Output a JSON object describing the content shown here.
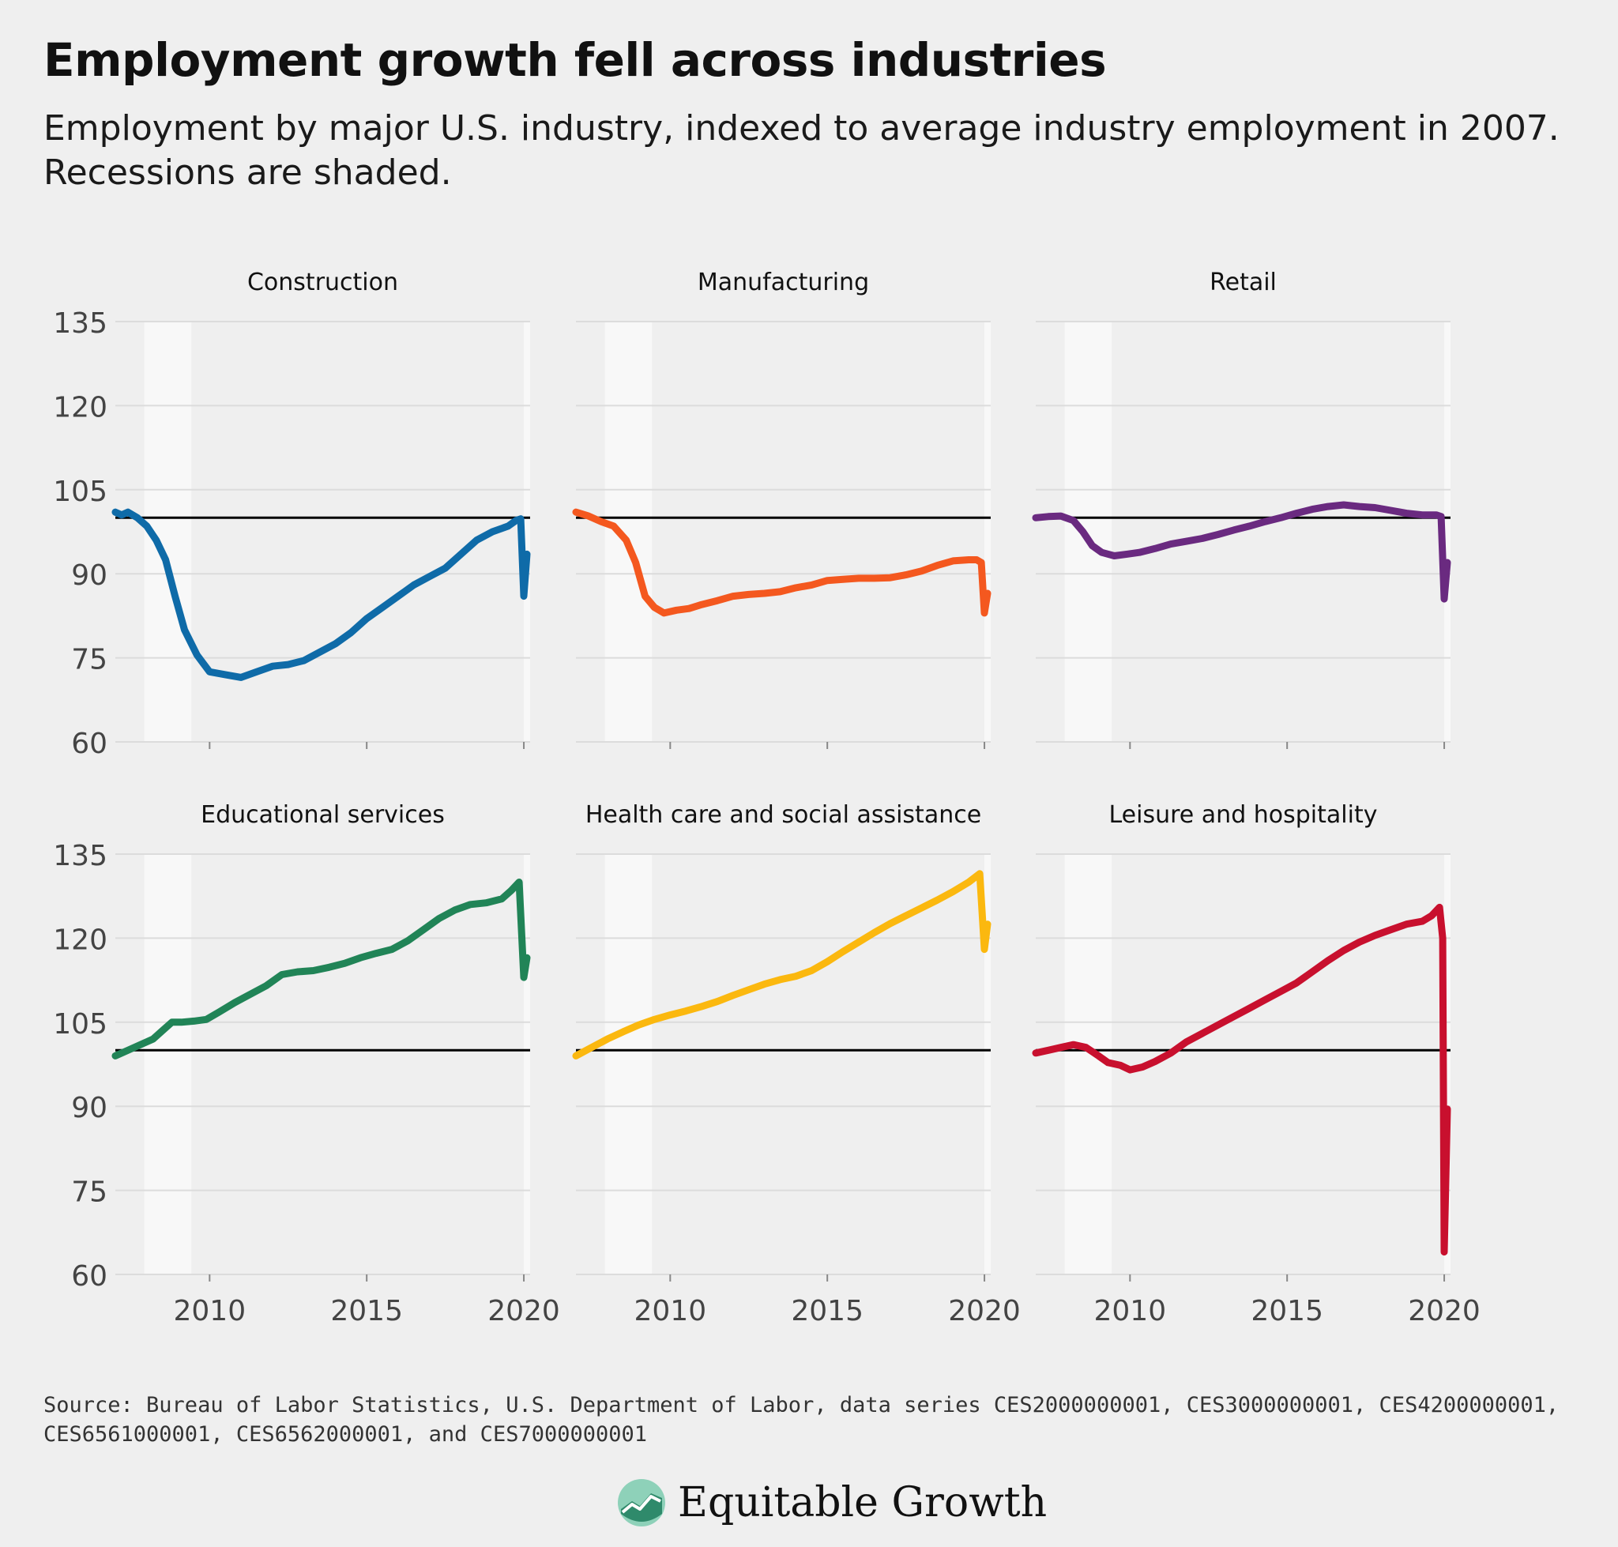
{
  "title": "Employment growth fell across industries",
  "subtitle": "Employment by major U.S. industry, indexed to average industry employment in 2007. Recessions are shaded.",
  "source": "Source: Bureau of Labor Statistics, U.S. Department of Labor, data series CES2000000001, CES3000000001, CES4200000001, CES6561000001, CES6562000001, and CES7000000001",
  "brand": {
    "name": "Equitable Growth",
    "logo_icon": "equitable-growth-logo-icon"
  },
  "colors": {
    "background": "#efefef",
    "recession": "#f8f8f8",
    "grid": "#dcdcdc",
    "reference_line": "#000000"
  },
  "chart_data": [
    {
      "type": "line",
      "title": "Construction",
      "color": "#0f6ba8",
      "xlim": [
        2007,
        2020.2
      ],
      "ylim": [
        60,
        135
      ],
      "yticks": [
        60,
        75,
        90,
        105,
        120,
        135
      ],
      "xticks": [
        2010,
        2015,
        2020
      ],
      "xtick_labels": [
        "2010",
        "2015",
        "2020"
      ],
      "ytick_labels": [
        "60",
        "75",
        "90",
        "105",
        "120",
        "135"
      ],
      "reference": 100,
      "recessions": [
        [
          2007.92,
          2009.42
        ],
        [
          2020.0,
          2020.4
        ]
      ],
      "x": [
        2007.0,
        2007.2,
        2007.4,
        2007.7,
        2008.0,
        2008.3,
        2008.6,
        2008.9,
        2009.2,
        2009.6,
        2010.0,
        2010.5,
        2011.0,
        2011.5,
        2012.0,
        2012.5,
        2013.0,
        2013.5,
        2014.0,
        2014.5,
        2015.0,
        2015.5,
        2016.0,
        2016.5,
        2017.0,
        2017.5,
        2018.0,
        2018.5,
        2019.0,
        2019.5,
        2019.75,
        2019.9,
        2020.0,
        2020.1
      ],
      "values": [
        101.0,
        100.5,
        101.0,
        100.0,
        98.5,
        96.0,
        92.5,
        86.0,
        80.0,
        75.5,
        72.5,
        72.0,
        71.5,
        72.5,
        73.5,
        73.8,
        74.5,
        76.0,
        77.5,
        79.5,
        82.0,
        84.0,
        86.0,
        88.0,
        89.5,
        91.0,
        93.5,
        96.0,
        97.5,
        98.5,
        99.5,
        99.8,
        86.0,
        93.5
      ],
      "series_label": "Construction"
    },
    {
      "type": "line",
      "title": "Manufacturing",
      "color": "#f4581f",
      "xlim": [
        2007,
        2020.2
      ],
      "ylim": [
        60,
        135
      ],
      "yticks": [
        60,
        75,
        90,
        105,
        120,
        135
      ],
      "xticks": [
        2010,
        2015,
        2020
      ],
      "xtick_labels": [
        "2010",
        "2015",
        "2020"
      ],
      "ytick_labels": [
        "60",
        "75",
        "90",
        "105",
        "120",
        "135"
      ],
      "reference": 100,
      "recessions": [
        [
          2007.92,
          2009.42
        ],
        [
          2020.0,
          2020.4
        ]
      ],
      "x": [
        2007.0,
        2007.4,
        2007.8,
        2008.2,
        2008.6,
        2008.9,
        2009.2,
        2009.5,
        2009.8,
        2010.2,
        2010.6,
        2011.0,
        2011.5,
        2012.0,
        2012.5,
        2013.0,
        2013.5,
        2014.0,
        2014.5,
        2015.0,
        2015.5,
        2016.0,
        2016.5,
        2017.0,
        2017.5,
        2018.0,
        2018.5,
        2019.0,
        2019.5,
        2019.75,
        2019.9,
        2020.0,
        2020.1
      ],
      "values": [
        101.0,
        100.3,
        99.3,
        98.5,
        96.0,
        92.0,
        86.0,
        84.0,
        83.0,
        83.5,
        83.8,
        84.5,
        85.2,
        86.0,
        86.3,
        86.5,
        86.8,
        87.5,
        88.0,
        88.8,
        89.0,
        89.2,
        89.2,
        89.3,
        89.8,
        90.5,
        91.5,
        92.3,
        92.5,
        92.5,
        92.0,
        83.0,
        86.5
      ],
      "series_label": "Manufacturing"
    },
    {
      "type": "line",
      "title": "Retail",
      "color": "#6a2a80",
      "xlim": [
        2007,
        2020.2
      ],
      "ylim": [
        60,
        135
      ],
      "yticks": [
        60,
        75,
        90,
        105,
        120,
        135
      ],
      "xticks": [
        2010,
        2015,
        2020
      ],
      "xtick_labels": [
        "2010",
        "2015",
        "2020"
      ],
      "ytick_labels": [
        "60",
        "75",
        "90",
        "105",
        "120",
        "135"
      ],
      "reference": 100,
      "recessions": [
        [
          2007.92,
          2009.42
        ],
        [
          2020.0,
          2020.4
        ]
      ],
      "x": [
        2007.0,
        2007.4,
        2007.8,
        2008.2,
        2008.5,
        2008.8,
        2009.1,
        2009.5,
        2009.9,
        2010.3,
        2010.8,
        2011.3,
        2011.8,
        2012.3,
        2012.8,
        2013.3,
        2013.8,
        2014.3,
        2014.8,
        2015.3,
        2015.8,
        2016.3,
        2016.8,
        2017.3,
        2017.8,
        2018.3,
        2018.8,
        2019.3,
        2019.75,
        2019.9,
        2020.0,
        2020.1
      ],
      "values": [
        100.0,
        100.2,
        100.3,
        99.5,
        97.5,
        95.0,
        93.8,
        93.2,
        93.5,
        93.8,
        94.5,
        95.3,
        95.8,
        96.3,
        97.0,
        97.8,
        98.5,
        99.3,
        100.0,
        100.8,
        101.5,
        102.0,
        102.3,
        102.0,
        101.8,
        101.3,
        100.8,
        100.5,
        100.5,
        100.2,
        85.5,
        92.0
      ],
      "series_label": "Retail"
    },
    {
      "type": "line",
      "title": "Educational services",
      "color": "#218457",
      "xlim": [
        2007,
        2020.2
      ],
      "ylim": [
        60,
        135
      ],
      "yticks": [
        60,
        75,
        90,
        105,
        120,
        135
      ],
      "xticks": [
        2010,
        2015,
        2020
      ],
      "xtick_labels": [
        "2010",
        "2015",
        "2020"
      ],
      "ytick_labels": [
        "60",
        "75",
        "90",
        "105",
        "120",
        "135"
      ],
      "reference": 100,
      "recessions": [
        [
          2007.92,
          2009.42
        ],
        [
          2020.0,
          2020.4
        ]
      ],
      "x": [
        2007.0,
        2007.4,
        2007.8,
        2008.2,
        2008.5,
        2008.8,
        2009.1,
        2009.5,
        2009.9,
        2010.3,
        2010.8,
        2011.3,
        2011.8,
        2012.3,
        2012.8,
        2013.3,
        2013.8,
        2014.3,
        2014.8,
        2015.3,
        2015.8,
        2016.3,
        2016.8,
        2017.3,
        2017.8,
        2018.3,
        2018.8,
        2019.3,
        2019.6,
        2019.85,
        2020.0,
        2020.1
      ],
      "values": [
        99.0,
        100.0,
        101.0,
        102.0,
        103.5,
        105.0,
        105.0,
        105.2,
        105.5,
        106.8,
        108.5,
        110.0,
        111.5,
        113.5,
        114.0,
        114.2,
        114.8,
        115.5,
        116.5,
        117.3,
        118.0,
        119.5,
        121.5,
        123.5,
        125.0,
        126.0,
        126.3,
        127.0,
        128.5,
        130.0,
        113.0,
        116.5
      ],
      "series_label": "Educational services"
    },
    {
      "type": "line",
      "title": "Health care and social assistance",
      "color": "#fbb80f",
      "xlim": [
        2007,
        2020.2
      ],
      "ylim": [
        60,
        135
      ],
      "yticks": [
        60,
        75,
        90,
        105,
        120,
        135
      ],
      "xticks": [
        2010,
        2015,
        2020
      ],
      "xtick_labels": [
        "2010",
        "2015",
        "2020"
      ],
      "ytick_labels": [
        "60",
        "75",
        "90",
        "105",
        "120",
        "135"
      ],
      "reference": 100,
      "recessions": [
        [
          2007.92,
          2009.42
        ],
        [
          2020.0,
          2020.4
        ]
      ],
      "x": [
        2007.0,
        2007.5,
        2008.0,
        2008.5,
        2009.0,
        2009.5,
        2010.0,
        2010.5,
        2011.0,
        2011.5,
        2012.0,
        2012.5,
        2013.0,
        2013.5,
        2014.0,
        2014.5,
        2015.0,
        2015.5,
        2016.0,
        2016.5,
        2017.0,
        2017.5,
        2018.0,
        2018.5,
        2019.0,
        2019.5,
        2019.85,
        2020.0,
        2020.1
      ],
      "values": [
        99.0,
        100.5,
        102.0,
        103.3,
        104.5,
        105.5,
        106.3,
        107.0,
        107.8,
        108.7,
        109.8,
        110.8,
        111.8,
        112.6,
        113.2,
        114.2,
        115.8,
        117.6,
        119.3,
        121.0,
        122.6,
        124.0,
        125.4,
        126.8,
        128.3,
        130.0,
        131.5,
        118.0,
        122.5
      ],
      "series_label": "Health care and social assistance"
    },
    {
      "type": "line",
      "title": "Leisure and hospitality",
      "color": "#c8102e",
      "xlim": [
        2007,
        2020.2
      ],
      "ylim": [
        60,
        135
      ],
      "yticks": [
        60,
        75,
        90,
        105,
        120,
        135
      ],
      "xticks": [
        2010,
        2015,
        2020
      ],
      "xtick_labels": [
        "2010",
        "2015",
        "2020"
      ],
      "ytick_labels": [
        "60",
        "75",
        "90",
        "105",
        "120",
        "135"
      ],
      "reference": 100,
      "recessions": [
        [
          2007.92,
          2009.42
        ],
        [
          2020.0,
          2020.4
        ]
      ],
      "x": [
        2007.0,
        2007.4,
        2007.8,
        2008.2,
        2008.6,
        2009.0,
        2009.3,
        2009.7,
        2010.0,
        2010.4,
        2010.8,
        2011.3,
        2011.8,
        2012.3,
        2012.8,
        2013.3,
        2013.8,
        2014.3,
        2014.8,
        2015.3,
        2015.8,
        2016.3,
        2016.8,
        2017.3,
        2017.8,
        2018.3,
        2018.8,
        2019.3,
        2019.6,
        2019.85,
        2019.95,
        2020.0,
        2020.1
      ],
      "values": [
        99.5,
        100.0,
        100.5,
        101.0,
        100.5,
        99.0,
        97.8,
        97.3,
        96.5,
        97.0,
        98.0,
        99.5,
        101.5,
        103.0,
        104.5,
        106.0,
        107.5,
        109.0,
        110.5,
        112.0,
        114.0,
        116.0,
        117.8,
        119.3,
        120.5,
        121.5,
        122.5,
        123.0,
        124.0,
        125.5,
        120.0,
        64.0,
        89.5
      ],
      "series_label": "Leisure and hospitality"
    }
  ]
}
